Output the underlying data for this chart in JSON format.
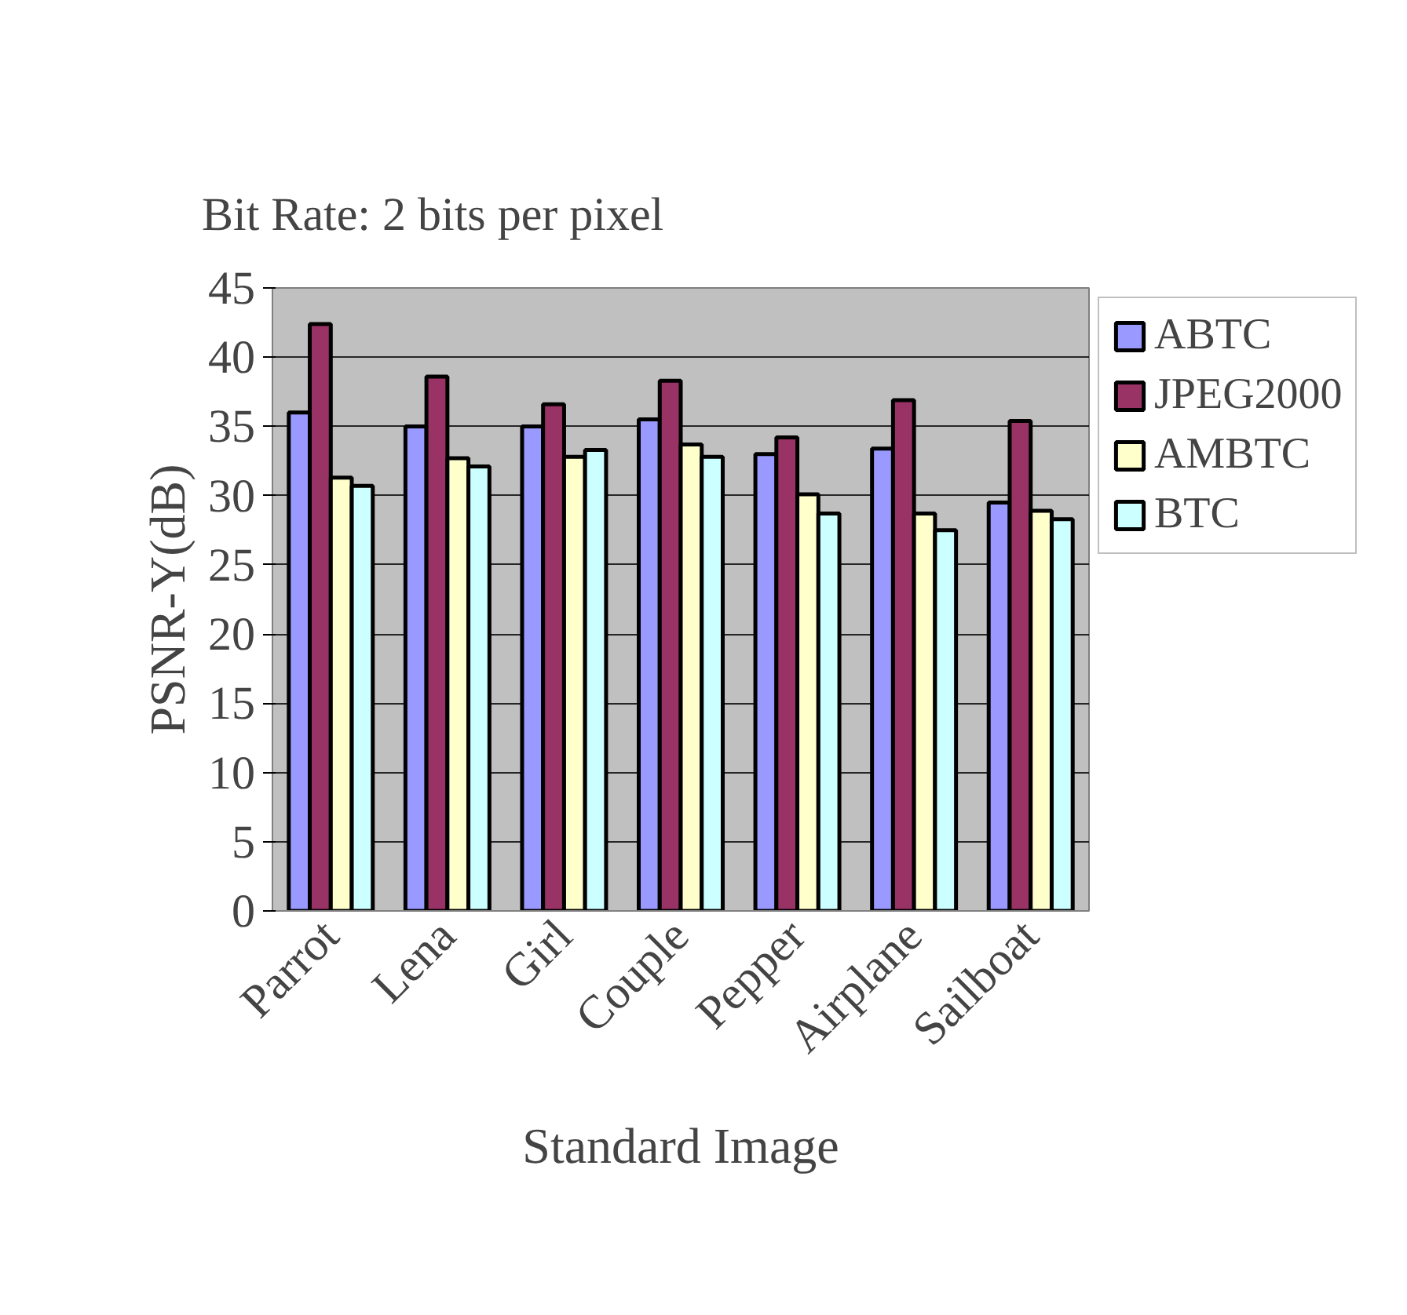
{
  "chart_data": {
    "type": "bar",
    "title": "Bit Rate: 2 bits per pixel",
    "xlabel": "Standard Image",
    "ylabel": "PSNR-Y(dB)",
    "categories": [
      "Parrot",
      "Lena",
      "Girl",
      "Couple",
      "Pepper",
      "Airplane",
      "Sailboat"
    ],
    "series": [
      {
        "name": "ABTC",
        "color": "#9999ff",
        "values": [
          36.0,
          35.0,
          35.0,
          35.5,
          33.0,
          33.4,
          29.5
        ]
      },
      {
        "name": "JPEG2000",
        "color": "#993366",
        "values": [
          42.4,
          38.6,
          36.6,
          38.3,
          34.2,
          36.9,
          35.4
        ]
      },
      {
        "name": "AMBTC",
        "color": "#ffffcc",
        "values": [
          31.3,
          32.7,
          32.8,
          33.7,
          30.1,
          28.7,
          28.9
        ]
      },
      {
        "name": "BTC",
        "color": "#ccffff",
        "values": [
          30.7,
          32.1,
          33.3,
          32.8,
          28.7,
          27.5,
          28.3
        ]
      }
    ],
    "ylim": [
      0,
      45
    ],
    "yticks": [
      0,
      5,
      10,
      15,
      20,
      25,
      30,
      35,
      40,
      45
    ],
    "grid": "y",
    "legend": "top right"
  }
}
